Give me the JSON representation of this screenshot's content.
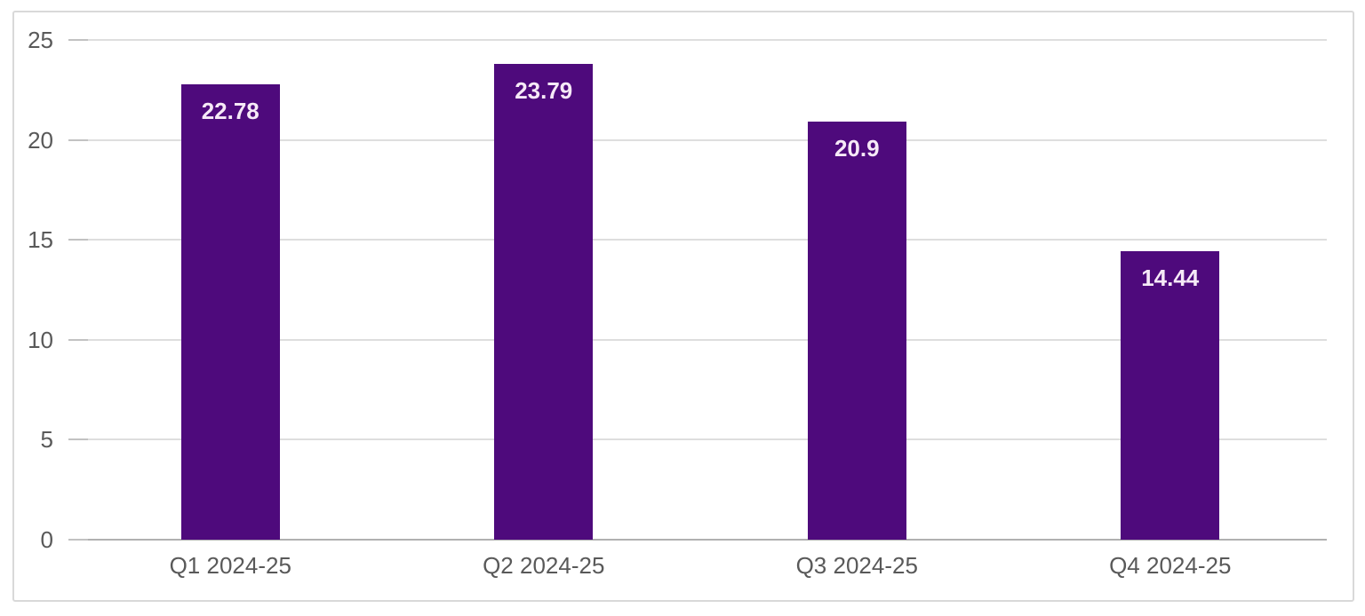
{
  "chart_data": {
    "type": "bar",
    "title": "",
    "xlabel": "",
    "ylabel": "",
    "categories": [
      "Q1 2024-25",
      "Q2 2024-25",
      "Q3 2024-25",
      "Q4 2024-25"
    ],
    "values": [
      22.78,
      23.79,
      20.9,
      14.44
    ],
    "data_labels": [
      "22.78",
      "23.79",
      "20.9",
      "14.44"
    ],
    "ylim": [
      0,
      25
    ],
    "yticks": [
      0,
      5,
      10,
      15,
      20,
      25
    ],
    "grid": true,
    "legend": false,
    "colors": {
      "bar_fill": "#4e0a7c",
      "data_label_text": "#f6e9f7",
      "axis_label_text": "#595959",
      "gridline": "#dedede",
      "baseline": "#b0b0b0",
      "tick_mark": "#c2c2c2",
      "frame_border": "#d9d9d9",
      "background": "#ffffff"
    }
  }
}
